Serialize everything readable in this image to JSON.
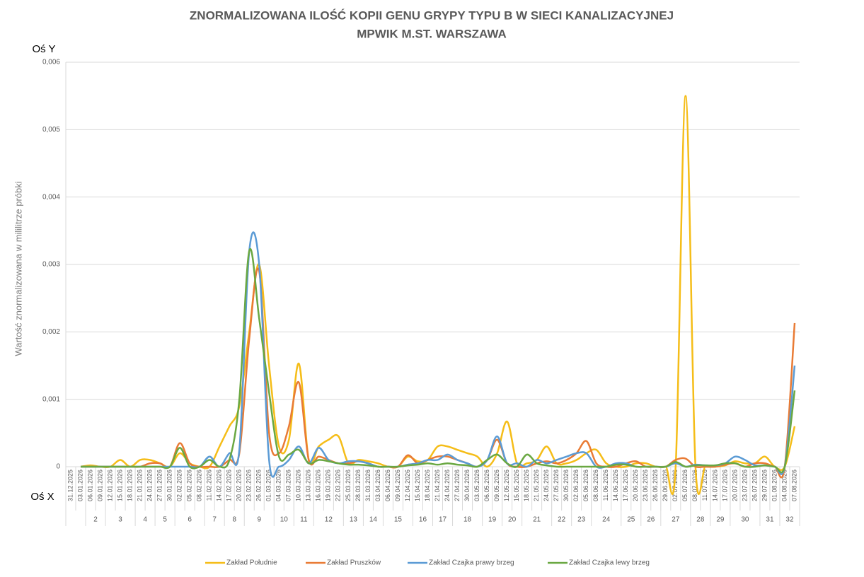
{
  "chart_data": {
    "type": "line",
    "title_lines": [
      "ZNORMALIZOWANA ILOŚĆ KOPII GENU GRYPY TYPU B W SIECI KANALIZACYJNEJ",
      "MPWIK M.ST. WARSZAWA"
    ],
    "y_axis_name": "Oś Y",
    "x_axis_name": "Oś X",
    "ylabel": "Wartość znormalizowana  w mililitrze próbki",
    "categories": [
      "31.12.2025",
      "03.01.2026",
      "06.01.2026",
      "09.01.2026",
      "12.01.2026",
      "15.01.2026",
      "18.01.2026",
      "21.01.2026",
      "24.01.2026",
      "27.01.2026",
      "30.01.2026",
      "02.02.2026",
      "05.02.2026",
      "08.02.2026",
      "11.02.2026",
      "14.02.2026",
      "17.02.2026",
      "20.02.2026",
      "23.02.2026",
      "26.02.2026",
      "01.03.2026",
      "04.03.2026",
      "07.03.2026",
      "10.03.2026",
      "13.03.2026",
      "16.03.2026",
      "19.03.2026",
      "22.03.2026",
      "25.03.2026",
      "28.03.2026",
      "31.03.2026",
      "03.04.2026",
      "06.04.2026",
      "09.04.2026",
      "12.04.2026",
      "15.04.2026",
      "18.04.2026",
      "21.04.2026",
      "24.04.2026",
      "27.04.2026",
      "30.04.2026",
      "03.05.2026",
      "06.05.2026",
      "09.05.2026",
      "12.05.2026",
      "15.05.2026",
      "18.05.2026",
      "21.05.2026",
      "24.05.2026",
      "27.05.2026",
      "30.05.2026",
      "02.06.2026",
      "05.06.2026",
      "08.06.2026",
      "11.06.2026",
      "14.06.2026",
      "17.06.2026",
      "20.06.2026",
      "23.06.2026",
      "26.06.2026",
      "29.06.2026",
      "02.07.2026",
      "05.07.2026",
      "08.07.2026",
      "11.07.2026",
      "14.07.2026",
      "17.07.2026",
      "20.07.2026",
      "23.07.2026",
      "26.07.2026",
      "29.07.2026",
      "01.08.2026",
      "04.08.2026",
      "07.08.2026"
    ],
    "week_labels": [
      "2",
      "3",
      "4",
      "5",
      "6",
      "7",
      "8",
      "9",
      "10",
      "11",
      "12",
      "13",
      "14",
      "15",
      "16",
      "17",
      "18",
      "19",
      "20",
      "21",
      "22",
      "23",
      "24",
      "25",
      "26",
      "27",
      "28",
      "29",
      "30",
      "31",
      "32"
    ],
    "ylim": [
      0,
      0.006
    ],
    "yticks": [
      0,
      {
        "value": 0.001,
        "label": "0,001"
      },
      {
        "value": 0.002,
        "label": "0,002"
      },
      {
        "value": 0.003,
        "label": "0,003"
      },
      {
        "value": 0.004,
        "label": "0,004"
      },
      {
        "value": 0.005,
        "label": "0,005"
      },
      {
        "value": 0.006,
        "label": "0,006"
      }
    ],
    "grid": true,
    "legend": "bottom",
    "series": [
      {
        "name": "Zakład Południe",
        "color": "#f5bd18",
        "values": [
          null,
          0,
          2e-05,
          0,
          0,
          0.0001,
          0,
          0.0001,
          0.0001,
          5e-05,
          0,
          0.0002,
          5e-05,
          0,
          0,
          0.0003,
          0.0006,
          0.0009,
          0.002,
          0.003,
          0.0015,
          0.0003,
          0.0004,
          0.00153,
          0.0001,
          0.0003,
          0.0004,
          0.00045,
          5e-05,
          0.0001,
          8e-05,
          5e-05,
          0,
          0,
          0.00015,
          8e-05,
          0.0001,
          0.0003,
          0.0003,
          0.00025,
          0.0002,
          0.00015,
          0,
          0.0002,
          0.00067,
          5e-05,
          5e-05,
          0.0001,
          0.0003,
          5e-05,
          5e-05,
          0.0001,
          0.0002,
          0.00025,
          5e-05,
          0,
          0,
          5e-05,
          5e-05,
          0,
          0,
          0,
          0.0055,
          0,
          0,
          0,
          2e-05,
          8e-05,
          5e-05,
          5e-05,
          0.00015,
          0,
          0,
          0.0006
        ]
      },
      {
        "name": "Zakład Pruszków",
        "color": "#e97b35",
        "values": [
          null,
          0,
          0,
          0,
          0,
          0,
          0,
          0,
          5e-05,
          5e-05,
          0,
          0.00035,
          5e-05,
          0,
          0,
          0,
          0.0001,
          0.0002,
          0.0019,
          0.0029,
          0.0005,
          0.0002,
          0.0006,
          0.00125,
          0.0001,
          0.00015,
          0.0001,
          5e-05,
          5e-05,
          8e-05,
          5e-05,
          0,
          0,
          0,
          0.00017,
          5e-05,
          0.0001,
          0.00015,
          0.00015,
          0.0001,
          5e-05,
          0,
          0.0001,
          0.0004,
          5e-05,
          0,
          0,
          5e-05,
          8e-05,
          5e-05,
          0.0001,
          0.0002,
          0.00038,
          5e-05,
          0,
          0,
          5e-05,
          8e-05,
          0,
          0,
          0,
          0.0001,
          0.00012,
          0,
          0,
          0,
          3e-05,
          5e-05,
          0,
          5e-05,
          5e-05,
          0,
          0,
          0.00213
        ]
      },
      {
        "name": "Zakład Czajka prawy brzeg",
        "color": "#5b9bd5",
        "values": [
          null,
          0,
          0,
          0,
          0,
          0,
          0,
          0,
          0,
          0,
          0,
          0,
          0,
          0,
          0.00015,
          0,
          0.0002,
          0.00025,
          0.0032,
          0.003,
          0.0001,
          0,
          0.0001,
          0.0003,
          5e-05,
          0.00028,
          0.0001,
          5e-05,
          8e-05,
          8e-05,
          5e-05,
          0,
          0,
          0,
          3e-05,
          5e-05,
          0.0001,
          0.0001,
          0.00018,
          0.0001,
          5e-05,
          0,
          0.0001,
          0.00045,
          5e-05,
          5e-05,
          0,
          0.0001,
          5e-05,
          0.0001,
          0.00015,
          0.0002,
          0.0002,
          0,
          0,
          5e-05,
          5e-05,
          0,
          0,
          0,
          0,
          5e-05,
          0,
          3e-05,
          2e-05,
          2e-05,
          5e-05,
          0.00015,
          0.0001,
          2e-05,
          2e-05,
          0,
          0,
          0.0015
        ]
      },
      {
        "name": "Zakład Czajka lewy brzeg",
        "color": "#6aa842",
        "values": [
          null,
          0,
          0,
          0,
          0,
          0,
          0,
          0,
          0,
          0,
          0,
          0.00028,
          0,
          0,
          0.0001,
          0,
          0.0001,
          0.001,
          0.0032,
          0.0022,
          0.0011,
          0.00015,
          0.00018,
          0.00025,
          5e-05,
          0.0001,
          8e-05,
          5e-05,
          3e-05,
          3e-05,
          2e-05,
          0,
          0,
          0,
          2e-05,
          3e-05,
          5e-05,
          3e-05,
          5e-05,
          3e-05,
          2e-05,
          0,
          0.0001,
          0.00018,
          5e-05,
          0,
          0.00018,
          5e-05,
          2e-05,
          0,
          0,
          0,
          0,
          0,
          0,
          3e-05,
          3e-05,
          0,
          0,
          0,
          0,
          7e-05,
          0,
          2e-05,
          2e-05,
          2e-05,
          5e-05,
          5e-05,
          0,
          0,
          2e-05,
          0,
          0,
          0.00113
        ]
      }
    ]
  }
}
